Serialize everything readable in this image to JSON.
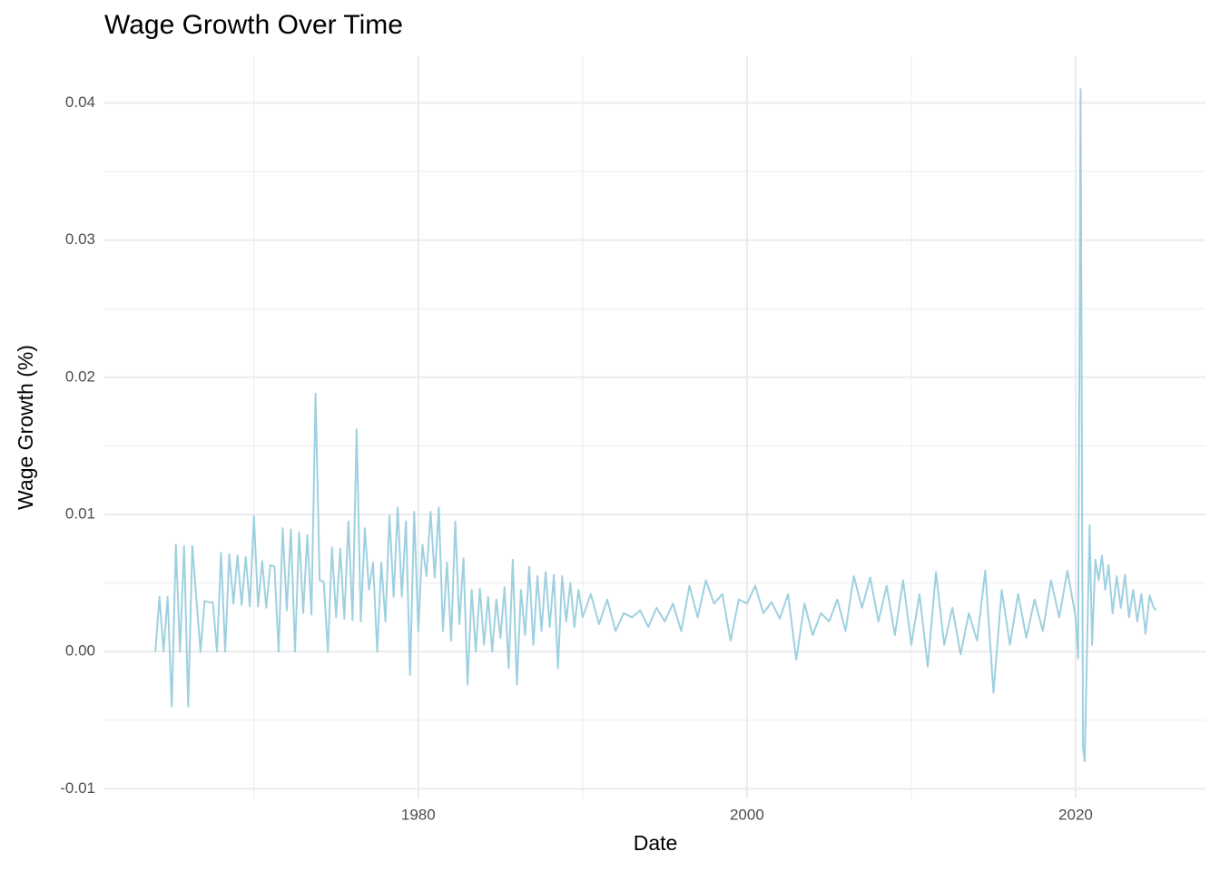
{
  "chart_data": {
    "type": "line",
    "title": "Wage Growth Over Time",
    "x_label": "Date",
    "y_label": "Wage Growth (%)",
    "x": [
      1964,
      1964.25,
      1964.5,
      1964.75,
      1965,
      1965.25,
      1965.5,
      1965.75,
      1966,
      1966.25,
      1966.5,
      1966.75,
      1967,
      1967.25,
      1967.5,
      1967.75,
      1968,
      1968.25,
      1968.5,
      1968.75,
      1969,
      1969.25,
      1969.5,
      1969.75,
      1970,
      1970.25,
      1970.5,
      1970.75,
      1971,
      1971.25,
      1971.5,
      1971.75,
      1972,
      1972.25,
      1972.5,
      1972.75,
      1973,
      1973.25,
      1973.5,
      1973.75,
      1974,
      1974.25,
      1974.5,
      1974.75,
      1975,
      1975.25,
      1975.5,
      1975.75,
      1976,
      1976.25,
      1976.5,
      1976.75,
      1977,
      1977.25,
      1977.5,
      1977.75,
      1978,
      1978.25,
      1978.5,
      1978.75,
      1979,
      1979.25,
      1979.5,
      1979.75,
      1980,
      1980.25,
      1980.5,
      1980.75,
      1981,
      1981.25,
      1981.5,
      1981.75,
      1982,
      1982.25,
      1982.5,
      1982.75,
      1983,
      1983.25,
      1983.5,
      1983.75,
      1984,
      1984.25,
      1984.5,
      1984.75,
      1985,
      1985.25,
      1985.5,
      1985.75,
      1986,
      1986.25,
      1986.5,
      1986.75,
      1987,
      1987.25,
      1987.5,
      1987.75,
      1988,
      1988.25,
      1988.5,
      1988.75,
      1989,
      1989.25,
      1989.5,
      1989.75,
      1990,
      1990.5,
      1991,
      1991.5,
      1992,
      1992.5,
      1993,
      1993.5,
      1994,
      1994.5,
      1995,
      1995.5,
      1996,
      1996.5,
      1997,
      1997.5,
      1998,
      1998.5,
      1999,
      1999.5,
      2000,
      2000.5,
      2001,
      2001.5,
      2002,
      2002.5,
      2003,
      2003.5,
      2004,
      2004.5,
      2005,
      2005.5,
      2006,
      2006.5,
      2007,
      2007.5,
      2008,
      2008.5,
      2009,
      2009.5,
      2010,
      2010.5,
      2011,
      2011.5,
      2012,
      2012.5,
      2013,
      2013.5,
      2014,
      2014.5,
      2015,
      2015.5,
      2016,
      2016.5,
      2017,
      2017.5,
      2018,
      2018.5,
      2019,
      2019.5,
      2020,
      2020.15,
      2020.3,
      2020.45,
      2020.55,
      2020.7,
      2020.85,
      2021,
      2021.2,
      2021.4,
      2021.6,
      2021.8,
      2022,
      2022.25,
      2022.5,
      2022.75,
      2023,
      2023.25,
      2023.5,
      2023.75,
      2024,
      2024.25,
      2024.5,
      2024.75,
      2024.9
    ],
    "series": [
      {
        "name": "Wage Growth",
        "color": "#9fd0e0",
        "values": [
          0,
          0.004,
          0,
          0.004,
          -0.004,
          0.0078,
          0,
          0.0077,
          -0.004,
          0.0077,
          0.0038,
          0,
          0.0037,
          0.0036,
          0.0036,
          0,
          0.0072,
          0,
          0.0071,
          0.0035,
          0.007,
          0.0034,
          0.0069,
          0.0033,
          0.0099,
          0.0033,
          0.0066,
          0.0032,
          0.0063,
          0.0062,
          0,
          0.009,
          0.003,
          0.0089,
          0,
          0.0087,
          0.0028,
          0.0085,
          0.0027,
          0.0188,
          0.0052,
          0.0051,
          0,
          0.0076,
          0.0025,
          0.0075,
          0.0024,
          0.0095,
          0.0023,
          0.0162,
          0.0022,
          0.009,
          0.0045,
          0.0065,
          0,
          0.0065,
          0.0022,
          0.0099,
          0.004,
          0.0105,
          0.004,
          0.0095,
          -0.0017,
          0.0102,
          0.0015,
          0.0078,
          0.0055,
          0.0102,
          0.0054,
          0.0105,
          0.0015,
          0.0065,
          0.0008,
          0.0095,
          0.002,
          0.0068,
          -0.0024,
          0.0045,
          0,
          0.0046,
          0.0005,
          0.004,
          0,
          0.0038,
          0.001,
          0.0047,
          -0.0012,
          0.0067,
          -0.0024,
          0.0045,
          0.0012,
          0.0062,
          0.0005,
          0.0055,
          0.0015,
          0.0058,
          0.0018,
          0.0056,
          -0.0012,
          0.0055,
          0.0022,
          0.005,
          0.0018,
          0.0045,
          0.0025,
          0.0042,
          0.002,
          0.0038,
          0.0015,
          0.0028,
          0.0025,
          0.003,
          0.0018,
          0.0032,
          0.0022,
          0.0035,
          0.0015,
          0.0048,
          0.0025,
          0.0052,
          0.0035,
          0.0042,
          0.0008,
          0.0038,
          0.0035,
          0.0048,
          0.0028,
          0.0036,
          0.0024,
          0.0042,
          -0.0006,
          0.0035,
          0.0012,
          0.0028,
          0.0022,
          0.0038,
          0.0015,
          0.0055,
          0.0032,
          0.0054,
          0.0022,
          0.0048,
          0.0012,
          0.0052,
          0.0005,
          0.0042,
          -0.0011,
          0.0058,
          0.0005,
          0.0032,
          -0.0002,
          0.0028,
          0.0008,
          0.0059,
          -0.003,
          0.0045,
          0.0005,
          0.0042,
          0.001,
          0.0038,
          0.0015,
          0.0052,
          0.0025,
          0.0059,
          0.0025,
          -0.0005,
          0.041,
          -0.007,
          -0.008,
          0.0005,
          0.0092,
          0.0005,
          0.0067,
          0.0052,
          0.007,
          0.0045,
          0.0063,
          0.0028,
          0.0055,
          0.0032,
          0.0056,
          0.0025,
          0.0045,
          0.0022,
          0.0042,
          0.0013,
          0.0041,
          0.0032,
          0.003
        ]
      }
    ],
    "xlim": [
      1960.9,
      2027.9
    ],
    "xticks": [
      1980,
      2000,
      2020
    ],
    "x_minor_ticks": [
      1970,
      1990,
      2010
    ],
    "ylim": [
      -0.0107,
      0.0434
    ],
    "yticks": [
      -0.01,
      {
        "value": 0,
        "label": "0.00"
      },
      0.01,
      0.02,
      0.03,
      0.04
    ],
    "y_minor_ticks": [
      -0.005,
      0.005,
      0.015,
      0.025,
      0.035
    ],
    "grid": true
  }
}
